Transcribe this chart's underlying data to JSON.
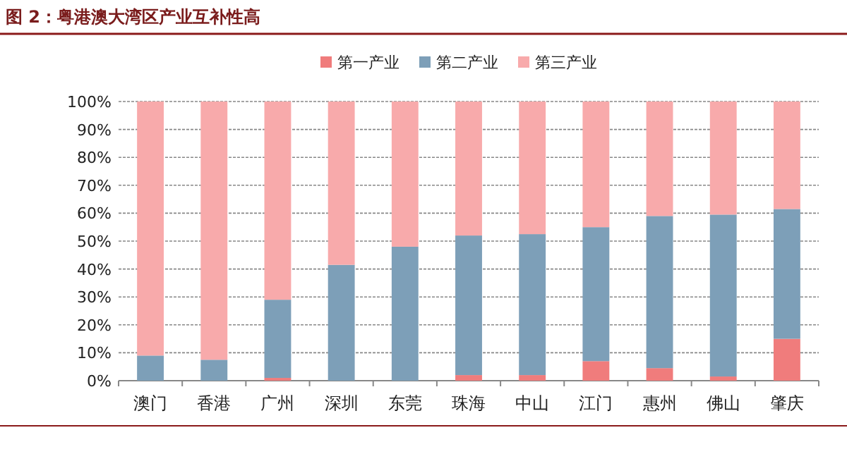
{
  "chart_data": {
    "type": "bar",
    "stacked": true,
    "title": "图 2：粤港澳大湾区产业互补性高",
    "categories": [
      "澳门",
      "香港",
      "广州",
      "深圳",
      "东莞",
      "珠海",
      "中山",
      "江门",
      "惠州",
      "佛山",
      "肇庆"
    ],
    "series": [
      {
        "name": "第一产业",
        "color": "#f07c7c",
        "values": [
          0,
          0,
          1,
          0,
          0,
          2,
          2,
          7,
          4.5,
          1.5,
          15
        ]
      },
      {
        "name": "第二产业",
        "color": "#7d9fb8",
        "values": [
          9,
          7.5,
          28,
          41.5,
          48,
          50,
          50.5,
          48,
          54.5,
          58,
          46.5
        ]
      },
      {
        "name": "第三产业",
        "color": "#f8aaab",
        "values": [
          91,
          92.5,
          71,
          58.5,
          52,
          48,
          47.5,
          45,
          41,
          40.5,
          38.5
        ]
      }
    ],
    "ylim": [
      0,
      100
    ],
    "yticks": [
      {
        "value": 0,
        "label": "0%"
      },
      {
        "value": 10,
        "label": "10%"
      },
      {
        "value": 20,
        "label": "20%"
      },
      {
        "value": 30,
        "label": "30%"
      },
      {
        "value": 40,
        "label": "40%"
      },
      {
        "value": 50,
        "label": "50%"
      },
      {
        "value": 60,
        "label": "60%"
      },
      {
        "value": 70,
        "label": "70%"
      },
      {
        "value": 80,
        "label": "80%"
      },
      {
        "value": 90,
        "label": "90%"
      },
      {
        "value": 100,
        "label": "100%"
      }
    ],
    "grid": "y",
    "legend": "top"
  }
}
